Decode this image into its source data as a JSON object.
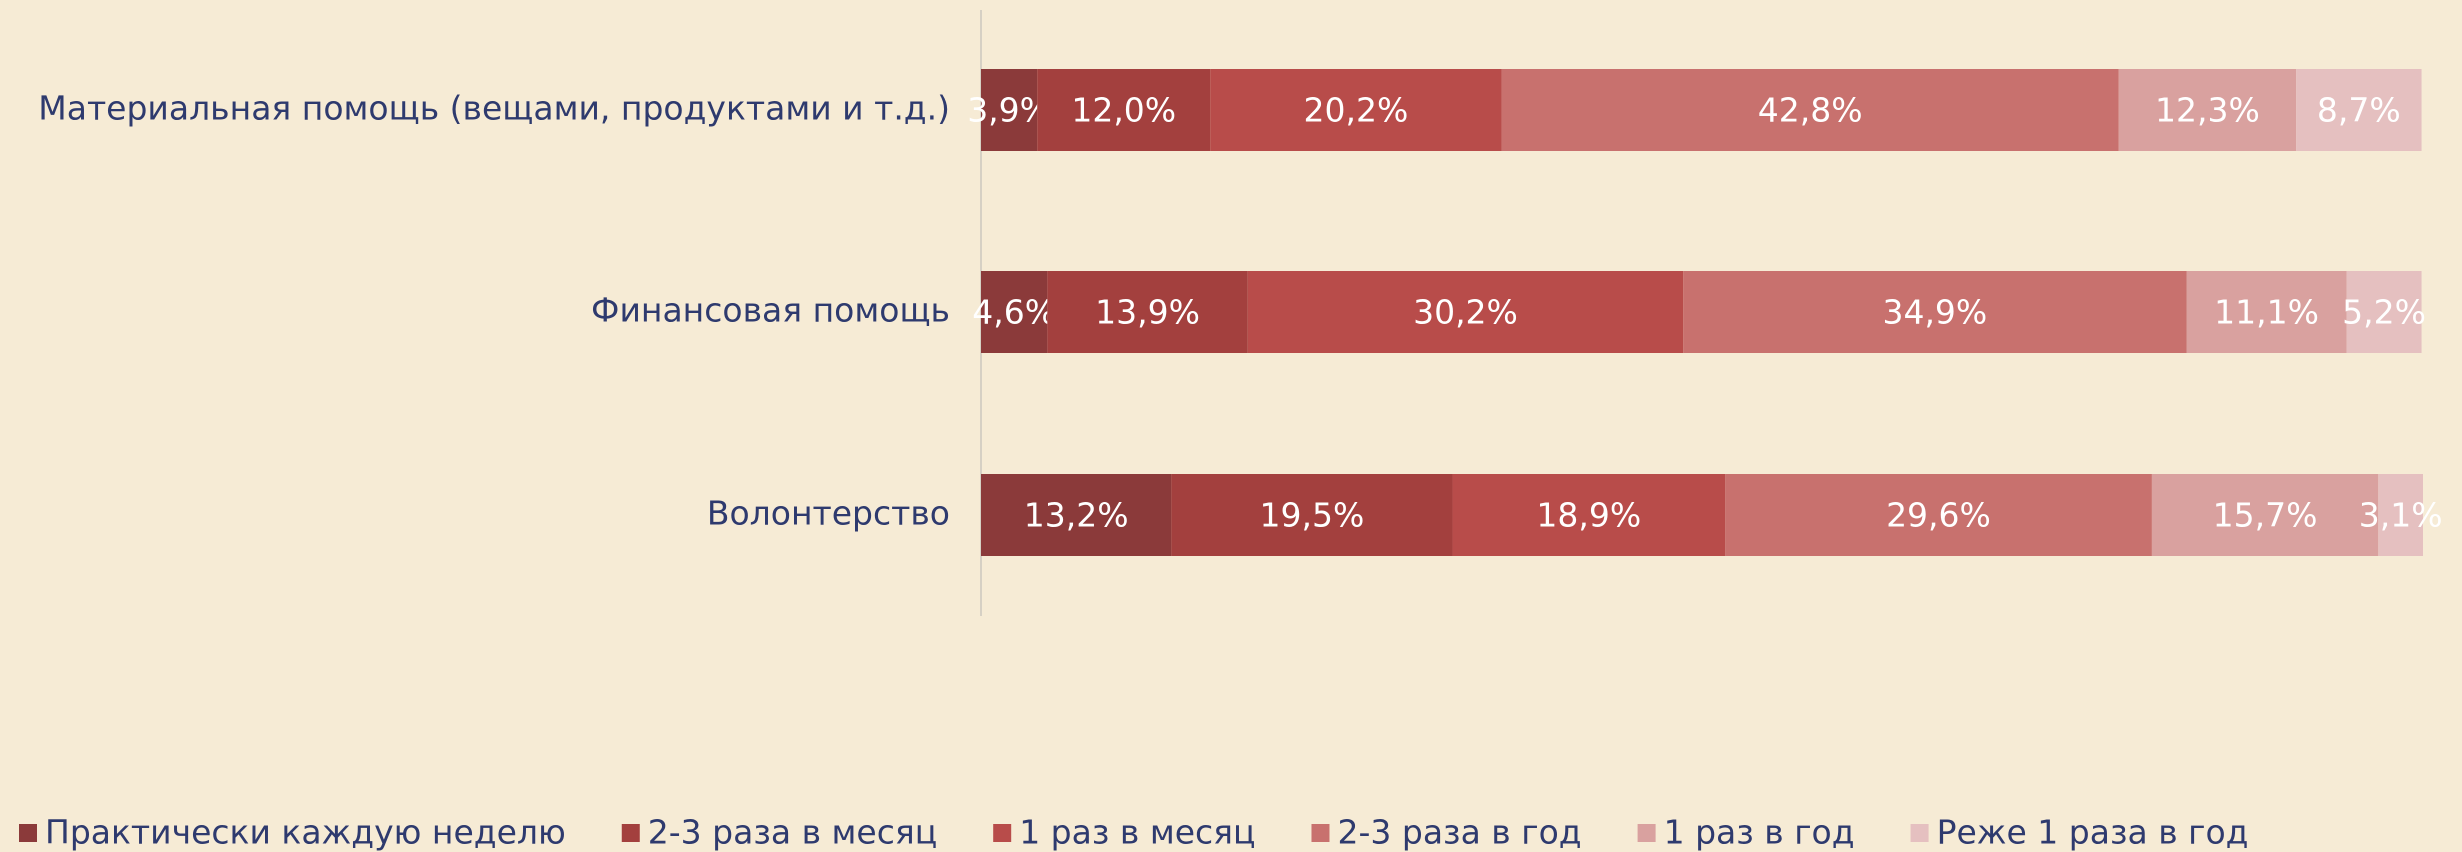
{
  "chart_data": {
    "type": "stacked-bar-horizontal",
    "categories": [
      "Материальная помощь (вещами, продуктами и т.д.)",
      "Финансовая помощь",
      "Волонтерство"
    ],
    "xlim": [
      0,
      100
    ],
    "series": [
      {
        "name": "Практически каждую неделю",
        "color": "#8b3a3a",
        "values": [
          3.9,
          4.6,
          13.2
        ],
        "value_labels": [
          "3,9%",
          "4,6%",
          "13,2%"
        ]
      },
      {
        "name": "2-3 раза в месяц",
        "color": "#a3403e",
        "values": [
          12.0,
          13.9,
          19.5
        ],
        "value_labels": [
          "12,0%",
          "13,9%",
          "19,5%"
        ]
      },
      {
        "name": "1 раз в месяц",
        "color": "#b84c4a",
        "values": [
          20.2,
          30.2,
          18.9
        ],
        "value_labels": [
          "20,2%",
          "30,2%",
          "18,9%"
        ]
      },
      {
        "name": "2-3 раза в год",
        "color": "#c8716e",
        "values": [
          42.8,
          34.9,
          29.6
        ],
        "value_labels": [
          "42,8%",
          "34,9%",
          "29,6%"
        ]
      },
      {
        "name": "1 раз в год",
        "color": "#d9a19f",
        "values": [
          12.3,
          11.1,
          15.7
        ],
        "value_labels": [
          "12,3%",
          "11,1%",
          "15,7%"
        ]
      },
      {
        "name": "Реже 1 раза в год",
        "color": "#e5c0c0",
        "values": [
          8.7,
          5.2,
          3.1
        ],
        "value_labels": [
          "8,7%",
          "5,2%",
          "3,1%"
        ]
      }
    ]
  }
}
